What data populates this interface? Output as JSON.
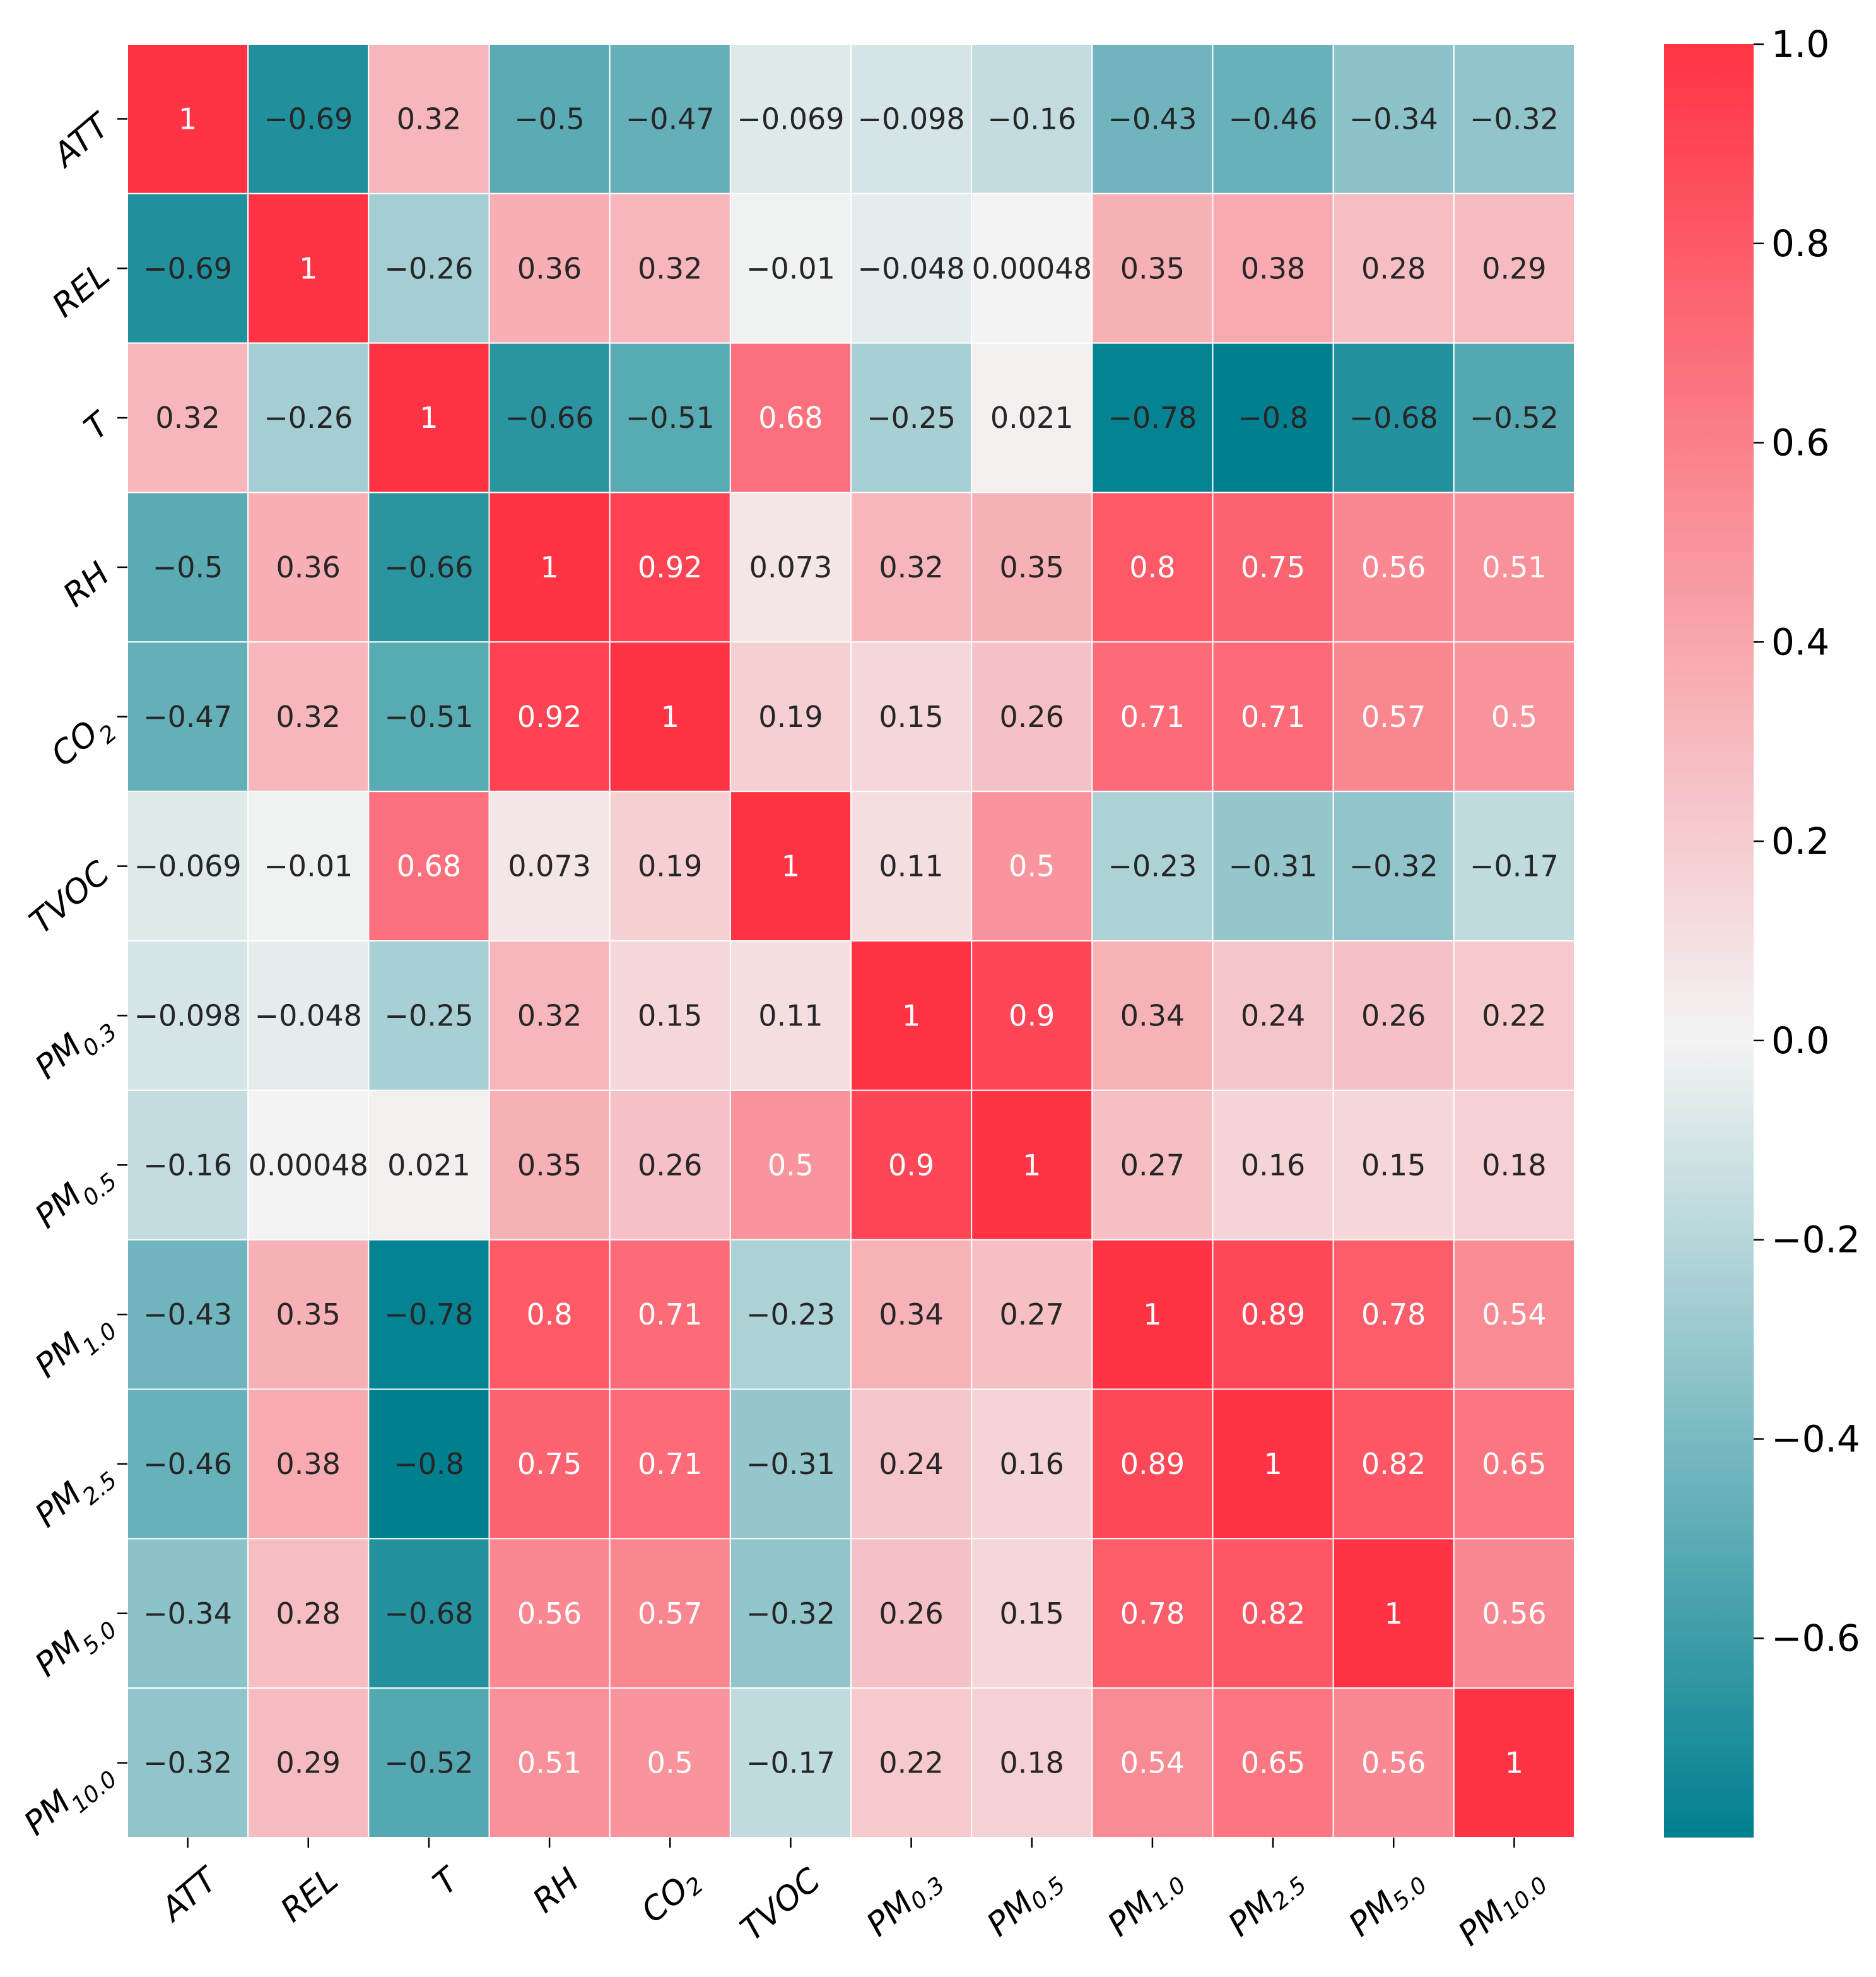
{
  "chart_data": {
    "type": "heatmap",
    "title": "",
    "xlabel": "",
    "ylabel": "",
    "variables": [
      {
        "base": "ATT",
        "sub": ""
      },
      {
        "base": "REL",
        "sub": ""
      },
      {
        "base": "T",
        "sub": ""
      },
      {
        "base": "RH",
        "sub": ""
      },
      {
        "base": "CO",
        "sub": "2"
      },
      {
        "base": "TVOC",
        "sub": ""
      },
      {
        "base": "PM",
        "sub": "0.3"
      },
      {
        "base": "PM",
        "sub": "0.5"
      },
      {
        "base": "PM",
        "sub": "1.0"
      },
      {
        "base": "PM",
        "sub": "2.5"
      },
      {
        "base": "PM",
        "sub": "5.0"
      },
      {
        "base": "PM",
        "sub": "10.0"
      }
    ],
    "matrix": [
      [
        "1",
        "−0.69",
        "0.32",
        "−0.5",
        "−0.47",
        "−0.069",
        "−0.098",
        "−0.16",
        "−0.43",
        "−0.46",
        "−0.34",
        "−0.32"
      ],
      [
        "−0.69",
        "1",
        "−0.26",
        "0.36",
        "0.32",
        "−0.01",
        "−0.048",
        "0.00048",
        "0.35",
        "0.38",
        "0.28",
        "0.29"
      ],
      [
        "0.32",
        "−0.26",
        "1",
        "−0.66",
        "−0.51",
        "0.68",
        "−0.25",
        "0.021",
        "−0.78",
        "−0.8",
        "−0.68",
        "−0.52"
      ],
      [
        "−0.5",
        "0.36",
        "−0.66",
        "1",
        "0.92",
        "0.073",
        "0.32",
        "0.35",
        "0.8",
        "0.75",
        "0.56",
        "0.51"
      ],
      [
        "−0.47",
        "0.32",
        "−0.51",
        "0.92",
        "1",
        "0.19",
        "0.15",
        "0.26",
        "0.71",
        "0.71",
        "0.57",
        "0.5"
      ],
      [
        "−0.069",
        "−0.01",
        "0.68",
        "0.073",
        "0.19",
        "1",
        "0.11",
        "0.5",
        "−0.23",
        "−0.31",
        "−0.32",
        "−0.17"
      ],
      [
        "−0.098",
        "−0.048",
        "−0.25",
        "0.32",
        "0.15",
        "0.11",
        "1",
        "0.9",
        "0.34",
        "0.24",
        "0.26",
        "0.22"
      ],
      [
        "−0.16",
        "0.00048",
        "0.021",
        "0.35",
        "0.26",
        "0.5",
        "0.9",
        "1",
        "0.27",
        "0.16",
        "0.15",
        "0.18"
      ],
      [
        "−0.43",
        "0.35",
        "−0.78",
        "0.8",
        "0.71",
        "−0.23",
        "0.34",
        "0.27",
        "1",
        "0.89",
        "0.78",
        "0.54"
      ],
      [
        "−0.46",
        "0.38",
        "−0.8",
        "0.75",
        "0.71",
        "−0.31",
        "0.24",
        "0.16",
        "0.89",
        "1",
        "0.82",
        "0.65"
      ],
      [
        "−0.34",
        "0.28",
        "−0.68",
        "0.56",
        "0.57",
        "−0.32",
        "0.26",
        "0.15",
        "0.78",
        "0.82",
        "1",
        "0.56"
      ],
      [
        "−0.32",
        "0.29",
        "−0.52",
        "0.51",
        "0.5",
        "−0.17",
        "0.22",
        "0.18",
        "0.54",
        "0.65",
        "0.56",
        "1"
      ]
    ],
    "colorbar": {
      "vmin": -0.8,
      "vmax": 1.0,
      "ticks": [
        1.0,
        0.8,
        0.6,
        0.4,
        0.2,
        0.0,
        -0.2,
        -0.4,
        -0.6
      ],
      "tick_labels": [
        "1.0",
        "0.8",
        "0.6",
        "0.4",
        "0.2",
        "0.0",
        "−0.2",
        "−0.4",
        "−0.6"
      ],
      "colors": {
        "low": "#00808f",
        "mid": "#f3f3f3",
        "high": "#ff3344"
      }
    }
  }
}
